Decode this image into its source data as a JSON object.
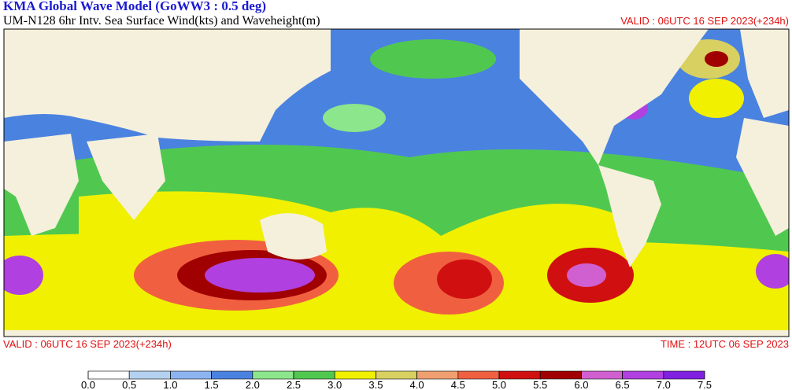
{
  "header": {
    "title": "KMA  Global Wave Model (GoWW3 : 0.5 deg)",
    "subtitle": "UM-N128  6hr Intv. Sea Surface Wind(kts) and Waveheight(m)",
    "valid": "VALID : 06UTC 16 SEP 2023(+234h)"
  },
  "footer": {
    "valid": "VALID : 06UTC 16 SEP 2023(+234h)",
    "time": "TIME : 12UTC 06 SEP 2023"
  },
  "legend": {
    "ticks": [
      {
        "value": 0,
        "label": "0.0"
      },
      {
        "value": 0.5,
        "label": "0.5"
      },
      {
        "value": 1,
        "label": "1.0"
      },
      {
        "value": 1.5,
        "label": "1.5"
      },
      {
        "value": 2,
        "label": "2.0"
      },
      {
        "value": 2.5,
        "label": "2.5"
      },
      {
        "value": 3,
        "label": "3.0"
      },
      {
        "value": 3.5,
        "label": "3.5"
      },
      {
        "value": 4,
        "label": "4.0"
      },
      {
        "value": 4.5,
        "label": "4.5"
      },
      {
        "value": 5,
        "label": "5.0"
      },
      {
        "value": 5.5,
        "label": "5.5"
      },
      {
        "value": 6,
        "label": "6.0"
      },
      {
        "value": 6.5,
        "label": "6.5"
      },
      {
        "value": 7,
        "label": "7.0"
      },
      {
        "value": 7.5,
        "label": "7.5"
      }
    ],
    "colors": [
      "#ffffff",
      "#b4d2f0",
      "#8cb4f0",
      "#4a82e0",
      "#8ce68c",
      "#50c850",
      "#f0f000",
      "#d8d060",
      "#f0a070",
      "#f06040",
      "#d01010",
      "#a00000",
      "#d060d0",
      "#b040e0",
      "#8020e0"
    ]
  }
}
